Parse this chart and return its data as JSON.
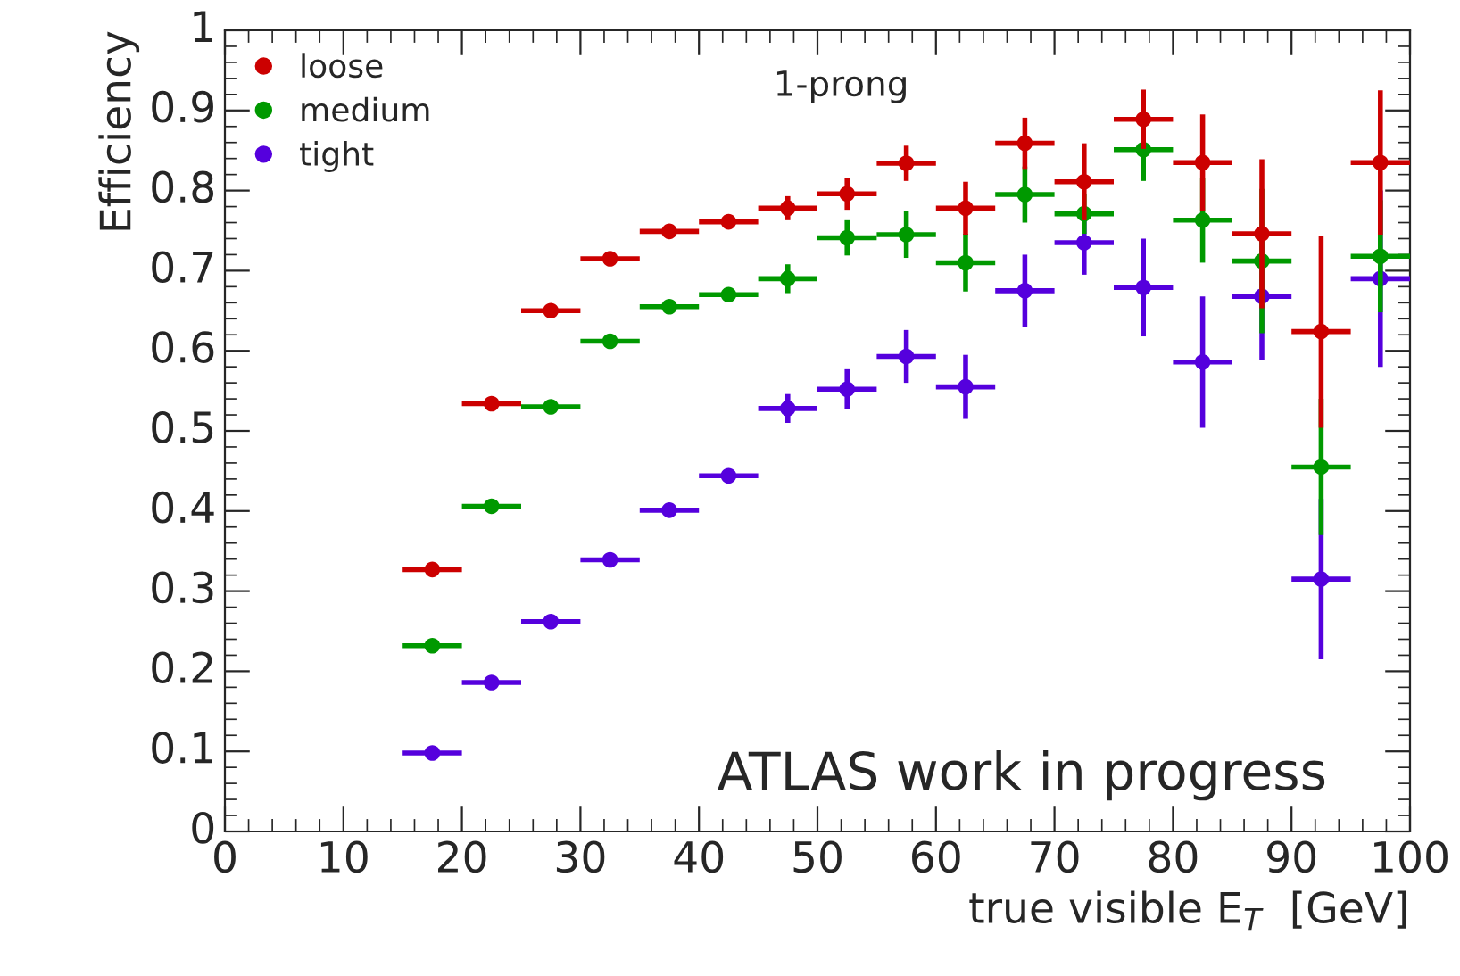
{
  "chart_data": {
    "type": "scatter",
    "xlabel": "true visible E$_{T}$  [GeV]",
    "ylabel": "Efficiency",
    "x": [
      17.5,
      22.5,
      27.5,
      32.5,
      37.5,
      42.5,
      47.5,
      52.5,
      57.5,
      62.5,
      67.5,
      72.5,
      77.5,
      82.5,
      87.5,
      92.5,
      97.5
    ],
    "series": [
      {
        "name": "loose",
        "color": "#cc0000",
        "values": [
          0.327,
          0.534,
          0.65,
          0.715,
          0.749,
          0.761,
          0.778,
          0.796,
          0.834,
          0.778,
          0.859,
          0.811,
          0.889,
          0.835,
          0.746,
          0.624,
          0.835
        ],
        "errors": [
          null,
          null,
          null,
          null,
          null,
          0.008,
          0.015,
          0.02,
          0.022,
          0.033,
          0.032,
          0.048,
          0.037,
          0.06,
          0.093,
          0.12,
          0.09
        ],
        "xerrors": [
          2.5,
          2.5,
          2.5,
          2.5,
          2.5,
          2.5,
          2.5,
          2.5,
          2.5,
          2.5,
          2.5,
          2.5,
          2.5,
          2.5,
          2.5,
          2.5,
          2.5
        ]
      },
      {
        "name": "medium",
        "color": "#009900",
        "values": [
          0.232,
          0.406,
          0.53,
          0.612,
          0.655,
          0.67,
          0.69,
          0.741,
          0.745,
          0.71,
          0.795,
          0.771,
          0.851,
          0.763,
          0.712,
          0.455,
          0.718
        ],
        "errors": [
          null,
          null,
          null,
          null,
          null,
          0.008,
          0.018,
          0.022,
          0.029,
          0.036,
          0.035,
          0.025,
          0.039,
          0.053,
          0.09,
          0.085,
          0.07
        ],
        "xerrors": [
          2.5,
          2.5,
          2.5,
          2.5,
          2.5,
          2.5,
          2.5,
          2.5,
          2.5,
          2.5,
          2.5,
          2.5,
          2.5,
          2.5,
          2.5,
          2.5,
          2.5
        ]
      },
      {
        "name": "tight",
        "color": "#5500dd",
        "values": [
          0.098,
          0.186,
          0.262,
          0.339,
          0.401,
          0.444,
          0.528,
          0.552,
          0.593,
          0.555,
          0.675,
          0.735,
          0.679,
          0.586,
          0.668,
          0.315,
          0.69
        ],
        "errors": [
          null,
          null,
          null,
          null,
          null,
          0.008,
          0.018,
          0.025,
          0.033,
          0.04,
          0.045,
          0.04,
          0.061,
          0.082,
          0.08,
          0.1,
          0.11
        ],
        "xerrors": [
          2.5,
          2.5,
          2.5,
          2.5,
          2.5,
          2.5,
          2.5,
          2.5,
          2.5,
          2.5,
          2.5,
          2.5,
          2.5,
          2.5,
          2.5,
          2.5,
          2.5
        ]
      }
    ],
    "xlim": [
      0,
      100
    ],
    "xticks": [
      0,
      10,
      20,
      30,
      40,
      50,
      60,
      70,
      80,
      90,
      100
    ],
    "ylim": [
      0,
      1
    ],
    "yticks": [
      0,
      0.1,
      0.2,
      0.3,
      0.4,
      0.5,
      0.6,
      0.7,
      0.8,
      0.9,
      1
    ],
    "annotations": [
      "1-prong",
      "ATLAS work in progress"
    ],
    "legend": "top left",
    "marker": "circle",
    "grid": false
  }
}
